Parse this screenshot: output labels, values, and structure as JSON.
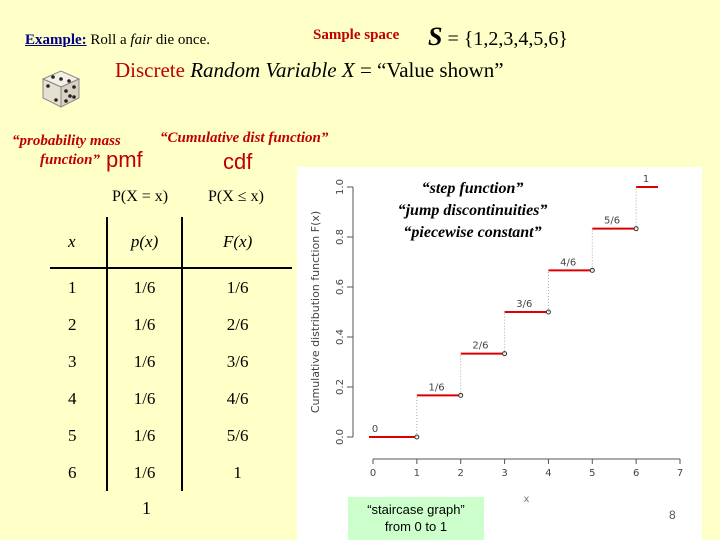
{
  "header": {
    "example_prefix": "Example:",
    "example_text_1": " Roll a ",
    "example_fair": "fair",
    "example_text_2": " die once.",
    "sample_space_label": "Sample space",
    "sample_space_symbol": "S",
    "sample_space_set": " = {1,2,3,4,5,6}",
    "drv_discrete": "Discrete",
    "drv_rv": " Random Variable ",
    "drv_x": "X",
    "drv_value": " = “Value shown”"
  },
  "captions": {
    "pmf_line1": "“probability mass",
    "pmf_line2": "function”",
    "cdf_caption": "“Cumulative dist function”",
    "pmf_word": "pmf",
    "cdf_word": "cdf",
    "pmf_head": "P(X = x)",
    "cdf_head": "P(X ≤ x)"
  },
  "table": {
    "headers": [
      "x",
      "p(x)",
      "F(x)"
    ],
    "rows": [
      [
        "1",
        "1/6",
        "1/6"
      ],
      [
        "2",
        "1/6",
        "2/6"
      ],
      [
        "3",
        "1/6",
        "3/6"
      ],
      [
        "4",
        "1/6",
        "4/6"
      ],
      [
        "5",
        "1/6",
        "5/6"
      ],
      [
        "6",
        "1/6",
        "1"
      ]
    ],
    "sum": "1"
  },
  "notes": {
    "step_1": "“step function”",
    "step_2": "“jump discontinuities”",
    "step_3": "“piecewise constant”",
    "staircase_1": "“staircase graph”",
    "staircase_2": "from 0 to 1"
  },
  "slide_number": "8",
  "colors": {
    "accent_red": "#c00000",
    "step_red": "#dd0000",
    "background": "#ffffc8"
  },
  "chart_data": {
    "type": "line",
    "ylabel": "Cumulative distribution function F(x)",
    "xlabel": "x",
    "xlim": [
      0,
      7
    ],
    "ylim": [
      0,
      1
    ],
    "x_ticks": [
      "0",
      "1",
      "2",
      "3",
      "4",
      "5",
      "6",
      "7"
    ],
    "y_ticks": [
      "0.0",
      "0.2",
      "0.4",
      "0.6",
      "0.8",
      "1.0"
    ],
    "steps": [
      {
        "x_start": 0,
        "x_end": 1,
        "y": 0,
        "label": "0"
      },
      {
        "x_start": 1,
        "x_end": 2,
        "y": 0.1667,
        "label": "1/6"
      },
      {
        "x_start": 2,
        "x_end": 3,
        "y": 0.3333,
        "label": "2/6"
      },
      {
        "x_start": 3,
        "x_end": 4,
        "y": 0.5,
        "label": "3/6"
      },
      {
        "x_start": 4,
        "x_end": 5,
        "y": 0.6667,
        "label": "4/6"
      },
      {
        "x_start": 5,
        "x_end": 6,
        "y": 0.8333,
        "label": "5/6"
      },
      {
        "x_start": 6,
        "x_end": 6.5,
        "y": 1.0,
        "label": "1"
      }
    ]
  }
}
